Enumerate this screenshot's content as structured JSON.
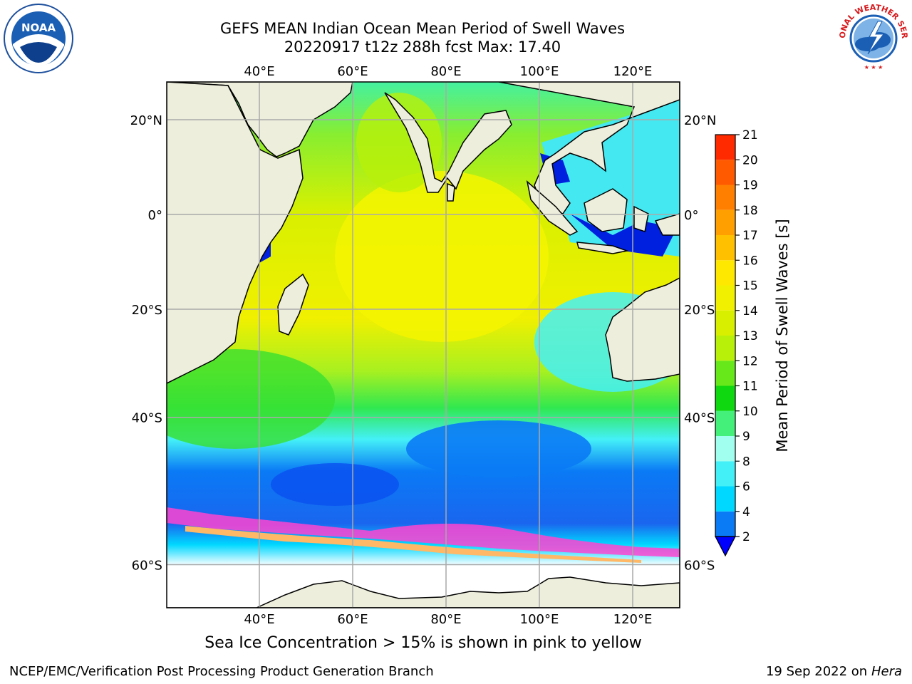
{
  "title": {
    "line1": "GEFS MEAN Indian Ocean Mean Period of Swell Waves",
    "line2": "20220917 t12z 288h fcst   Max: 17.40"
  },
  "map": {
    "lon_ticks": [
      "40°E",
      "60°E",
      "80°E",
      "100°E",
      "120°E"
    ],
    "lat_ticks": [
      "20°N",
      "0°",
      "20°S",
      "40°S",
      "60°S"
    ],
    "lon_values": [
      40,
      60,
      80,
      100,
      120
    ],
    "lat_values": [
      20,
      0,
      -20,
      -40,
      -60
    ]
  },
  "colorbar": {
    "label": "Mean Period of Swell Waves [s]",
    "ticks": [
      "2",
      "4",
      "6",
      "8",
      "9",
      "10",
      "11",
      "12",
      "13",
      "14",
      "15",
      "16",
      "17",
      "18",
      "19",
      "20",
      "21"
    ],
    "colors": [
      "#0a7af5",
      "#00d8ff",
      "#44f0f8",
      "#a0ffee",
      "#44f07a",
      "#10d810",
      "#66e81a",
      "#b8f00a",
      "#d8f000",
      "#f0f000",
      "#ffe800",
      "#ffc000",
      "#ffa000",
      "#ff8000",
      "#ff5a00",
      "#ff2a00"
    ],
    "extend_color": "#0000ff"
  },
  "note": "Sea Ice Concentration > 15% is shown in pink to yellow",
  "credit_left": "NCEP/EMC/Verification Post Processing Product Generation Branch",
  "credit_date": "19 Sep 2022 on",
  "credit_host": "Hera",
  "logos": {
    "noaa_text": "NOAA",
    "nws_text": "NATIONAL WEATHER SERVICE"
  }
}
